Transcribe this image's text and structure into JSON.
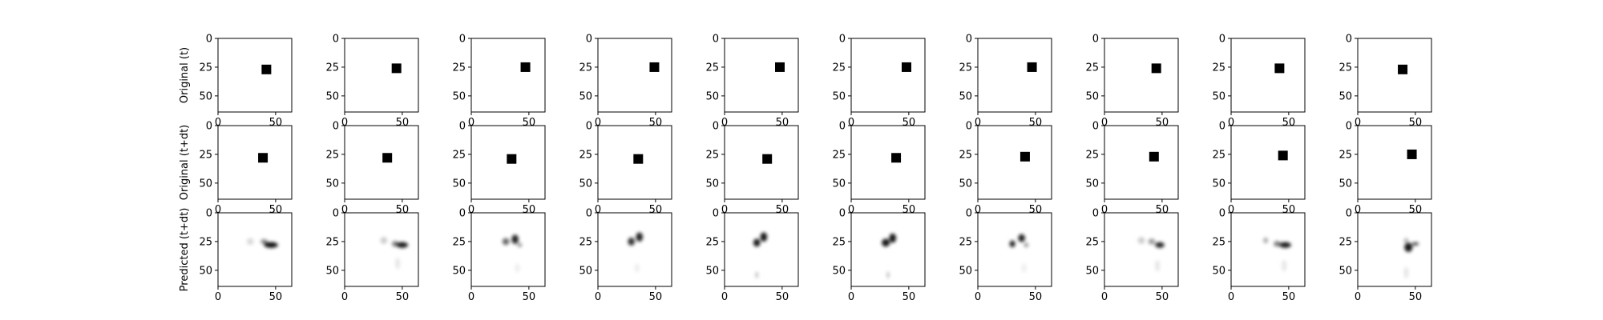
{
  "chart_data": {
    "type": "image-grid",
    "image_extent": [
      0,
      64
    ],
    "x_ticks": [
      0,
      50
    ],
    "y_ticks": [
      0,
      25,
      50
    ],
    "rows": [
      {
        "label": "Original (t)",
        "kind": "square",
        "cells": [
          {
            "cx": 42,
            "cy": 27
          },
          {
            "cx": 45,
            "cy": 26
          },
          {
            "cx": 47,
            "cy": 25
          },
          {
            "cx": 49,
            "cy": 25
          },
          {
            "cx": 48,
            "cy": 25
          },
          {
            "cx": 48,
            "cy": 25
          },
          {
            "cx": 47,
            "cy": 25
          },
          {
            "cx": 45,
            "cy": 26
          },
          {
            "cx": 42,
            "cy": 26
          },
          {
            "cx": 39,
            "cy": 27
          }
        ]
      },
      {
        "label": "Original (t+dt)",
        "kind": "square",
        "cells": [
          {
            "cx": 39,
            "cy": 28
          },
          {
            "cx": 37,
            "cy": 28
          },
          {
            "cx": 35,
            "cy": 29
          },
          {
            "cx": 35,
            "cy": 29
          },
          {
            "cx": 37,
            "cy": 29
          },
          {
            "cx": 39,
            "cy": 28
          },
          {
            "cx": 41,
            "cy": 27
          },
          {
            "cx": 43,
            "cy": 27
          },
          {
            "cx": 45,
            "cy": 26
          },
          {
            "cx": 47,
            "cy": 25
          }
        ]
      },
      {
        "label": "Predicted (t+dt)",
        "kind": "blob",
        "cells": [
          {
            "blobs": [
              {
                "cx": 46,
                "cy": 28,
                "rx": 6,
                "ry": 2.5,
                "o": 0.95
              },
              {
                "cx": 40,
                "cy": 25,
                "rx": 3,
                "ry": 2,
                "o": 0.5
              },
              {
                "cx": 28,
                "cy": 25,
                "rx": 3,
                "ry": 3,
                "o": 0.15
              }
            ]
          },
          {
            "blobs": [
              {
                "cx": 50,
                "cy": 28,
                "rx": 5,
                "ry": 2.5,
                "o": 0.9
              },
              {
                "cx": 44,
                "cy": 27,
                "rx": 3,
                "ry": 2.5,
                "o": 0.5
              },
              {
                "cx": 34,
                "cy": 24,
                "rx": 3,
                "ry": 3,
                "o": 0.2
              },
              {
                "cx": 46,
                "cy": 44,
                "rx": 2,
                "ry": 5,
                "o": 0.1
              }
            ]
          },
          {
            "blobs": [
              {
                "cx": 38,
                "cy": 23,
                "rx": 3,
                "ry": 4,
                "o": 0.85
              },
              {
                "cx": 30,
                "cy": 25,
                "rx": 3,
                "ry": 3,
                "o": 0.6
              },
              {
                "cx": 42,
                "cy": 28,
                "rx": 2,
                "ry": 2,
                "o": 0.4
              },
              {
                "cx": 40,
                "cy": 48,
                "rx": 2,
                "ry": 4,
                "o": 0.07
              }
            ]
          },
          {
            "blobs": [
              {
                "cx": 36,
                "cy": 21,
                "rx": 3,
                "ry": 4,
                "o": 0.85
              },
              {
                "cx": 29,
                "cy": 25,
                "rx": 3,
                "ry": 3.5,
                "o": 0.8
              },
              {
                "cx": 34,
                "cy": 48,
                "rx": 2,
                "ry": 4,
                "o": 0.07
              }
            ]
          },
          {
            "blobs": [
              {
                "cx": 34,
                "cy": 21,
                "rx": 3,
                "ry": 4,
                "o": 0.9
              },
              {
                "cx": 28,
                "cy": 26,
                "rx": 3,
                "ry": 3.5,
                "o": 0.9
              },
              {
                "cx": 28,
                "cy": 54,
                "rx": 1,
                "ry": 3,
                "o": 0.3
              }
            ]
          },
          {
            "blobs": [
              {
                "cx": 36,
                "cy": 22,
                "rx": 3,
                "ry": 4,
                "o": 0.9
              },
              {
                "cx": 30,
                "cy": 26,
                "rx": 3.5,
                "ry": 3.5,
                "o": 0.9
              },
              {
                "cx": 32,
                "cy": 54,
                "rx": 1,
                "ry": 3,
                "o": 0.3
              }
            ]
          },
          {
            "blobs": [
              {
                "cx": 38,
                "cy": 22,
                "rx": 3,
                "ry": 3.5,
                "o": 0.85
              },
              {
                "cx": 30,
                "cy": 27,
                "rx": 2.5,
                "ry": 3,
                "o": 0.85
              },
              {
                "cx": 42,
                "cy": 28,
                "rx": 2,
                "ry": 2,
                "o": 0.4
              },
              {
                "cx": 40,
                "cy": 48,
                "rx": 2,
                "ry": 4,
                "o": 0.07
              }
            ]
          },
          {
            "blobs": [
              {
                "cx": 48,
                "cy": 28,
                "rx": 4,
                "ry": 2.5,
                "o": 0.85
              },
              {
                "cx": 41,
                "cy": 25,
                "rx": 3,
                "ry": 2.5,
                "o": 0.4
              },
              {
                "cx": 32,
                "cy": 24,
                "rx": 3,
                "ry": 3,
                "o": 0.2
              },
              {
                "cx": 46,
                "cy": 46,
                "rx": 2,
                "ry": 5,
                "o": 0.1
              }
            ]
          },
          {
            "blobs": [
              {
                "cx": 47,
                "cy": 28,
                "rx": 5,
                "ry": 2.5,
                "o": 0.9
              },
              {
                "cx": 40,
                "cy": 27,
                "rx": 3,
                "ry": 2.5,
                "o": 0.5
              },
              {
                "cx": 30,
                "cy": 24,
                "rx": 2,
                "ry": 2.5,
                "o": 0.35
              },
              {
                "cx": 46,
                "cy": 46,
                "rx": 2,
                "ry": 5,
                "o": 0.1
              }
            ]
          },
          {
            "blobs": [
              {
                "cx": 44,
                "cy": 30,
                "rx": 3.5,
                "ry": 4,
                "o": 0.9
              },
              {
                "cx": 50,
                "cy": 27,
                "rx": 3,
                "ry": 1.5,
                "o": 0.7
              },
              {
                "cx": 42,
                "cy": 24,
                "rx": 2,
                "ry": 2,
                "o": 0.3
              },
              {
                "cx": 42,
                "cy": 52,
                "rx": 2,
                "ry": 5,
                "o": 0.1
              }
            ]
          }
        ]
      }
    ]
  }
}
